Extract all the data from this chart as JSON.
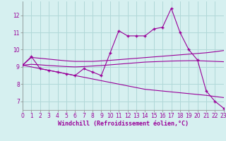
{
  "xlabel": "Windchill (Refroidissement éolien,°C)",
  "bg_color": "#d6f0f0",
  "grid_color": "#b0d8d8",
  "line_color": "#990099",
  "hours": [
    0,
    1,
    2,
    3,
    4,
    5,
    6,
    7,
    8,
    9,
    10,
    11,
    12,
    13,
    14,
    15,
    16,
    17,
    18,
    19,
    20,
    21,
    22,
    23
  ],
  "temp_line": [
    9.1,
    9.6,
    8.9,
    8.8,
    8.7,
    8.6,
    8.5,
    8.9,
    8.7,
    8.5,
    9.8,
    11.1,
    10.8,
    10.8,
    10.8,
    11.2,
    11.3,
    12.4,
    11.0,
    10.0,
    9.4,
    7.6,
    7.0,
    6.6
  ],
  "trend1": [
    9.1,
    9.55,
    9.5,
    9.45,
    9.4,
    9.35,
    9.32,
    9.32,
    9.32,
    9.35,
    9.38,
    9.42,
    9.46,
    9.5,
    9.54,
    9.58,
    9.62,
    9.66,
    9.7,
    9.74,
    9.78,
    9.82,
    9.88,
    9.95
  ],
  "trend2": [
    9.1,
    9.15,
    9.12,
    9.08,
    9.05,
    9.02,
    9.0,
    9.02,
    9.05,
    9.08,
    9.12,
    9.16,
    9.2,
    9.24,
    9.28,
    9.3,
    9.32,
    9.34,
    9.35,
    9.36,
    9.36,
    9.34,
    9.32,
    9.3
  ],
  "trend3": [
    9.1,
    9.0,
    8.9,
    8.8,
    8.7,
    8.6,
    8.5,
    8.4,
    8.3,
    8.2,
    8.1,
    8.0,
    7.9,
    7.8,
    7.7,
    7.65,
    7.6,
    7.55,
    7.5,
    7.45,
    7.4,
    7.35,
    7.28,
    7.22
  ],
  "ylim": [
    6.5,
    12.8
  ],
  "yticks": [
    7,
    8,
    9,
    10,
    11,
    12
  ],
  "xlim": [
    0,
    23
  ],
  "xticks": [
    0,
    1,
    2,
    3,
    4,
    5,
    6,
    7,
    8,
    9,
    10,
    11,
    12,
    13,
    14,
    15,
    16,
    17,
    18,
    19,
    20,
    21,
    22,
    23
  ],
  "tick_fontsize": 5.5,
  "xlabel_fontsize": 6.0,
  "spine_color": "#888888"
}
